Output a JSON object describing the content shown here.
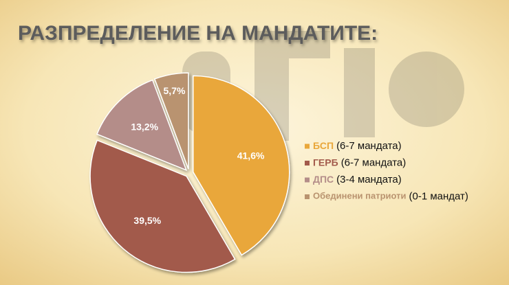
{
  "chart_data": {
    "type": "pie",
    "title": "РАЗПРЕДЕЛЕНИЕ НА МАНДАТИТЕ:",
    "categories": [
      "БСП",
      "ГЕРБ",
      "ДПС",
      "Обединени патриоти"
    ],
    "notes": [
      "(6-7 мандата)",
      "(6-7 мандата)",
      "(3-4 мандата)",
      "(0-1 мандат)"
    ],
    "values": [
      41.6,
      39.5,
      13.2,
      5.7
    ],
    "value_labels": [
      "41,6%",
      "39,5%",
      "13,2%",
      "5,7%"
    ],
    "colors": [
      "#e9a73a",
      "#a25a4b",
      "#b48d89",
      "#b9936f"
    ],
    "legend": "right"
  }
}
